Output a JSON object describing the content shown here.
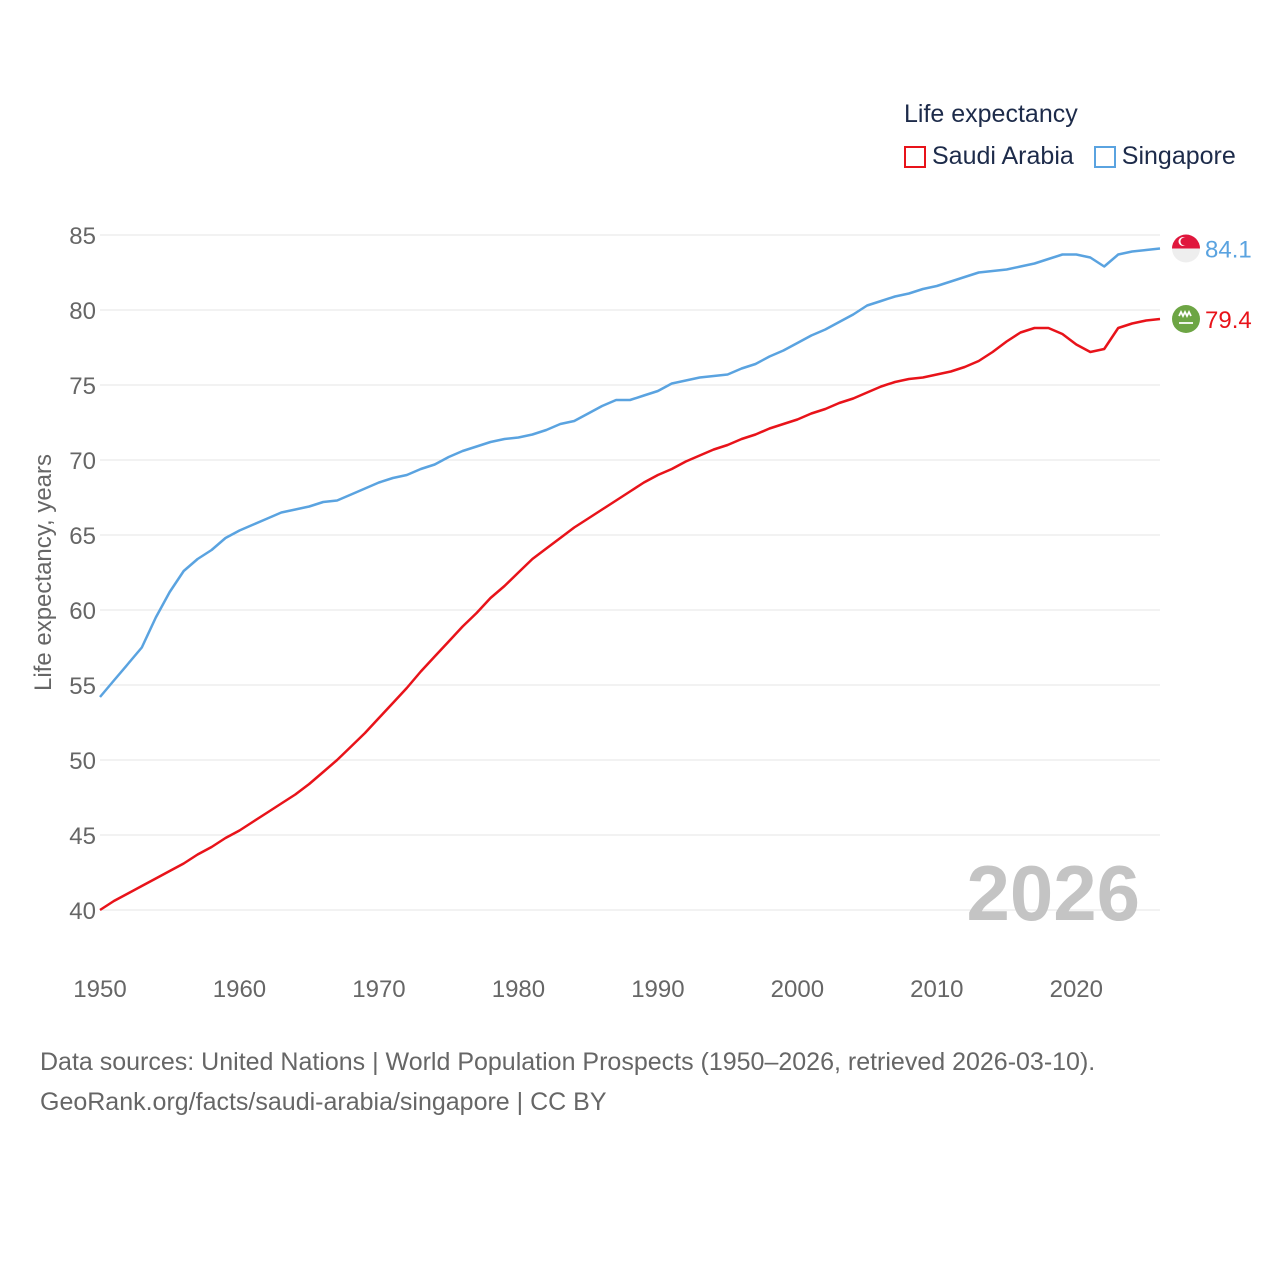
{
  "chart_data": {
    "type": "line",
    "title": "Life expectancy",
    "ylabel": "Life expectancy, years",
    "xlabel": "",
    "xlim": [
      1950,
      2026
    ],
    "ylim": [
      40,
      85
    ],
    "x_ticks": [
      1950,
      1960,
      1970,
      1980,
      1990,
      2000,
      2010,
      2020
    ],
    "y_ticks": [
      40,
      45,
      50,
      55,
      60,
      65,
      70,
      75,
      80,
      85
    ],
    "year_watermark": "2026",
    "series": [
      {
        "name": "Saudi Arabia",
        "color": "#e8131a",
        "end_label": "79.4",
        "flag": "saudi-arabia-flag-icon",
        "points": [
          [
            1950,
            40.0
          ],
          [
            1951,
            40.6
          ],
          [
            1952,
            41.1
          ],
          [
            1953,
            41.6
          ],
          [
            1954,
            42.1
          ],
          [
            1955,
            42.6
          ],
          [
            1956,
            43.1
          ],
          [
            1957,
            43.7
          ],
          [
            1958,
            44.2
          ],
          [
            1959,
            44.8
          ],
          [
            1960,
            45.3
          ],
          [
            1961,
            45.9
          ],
          [
            1962,
            46.5
          ],
          [
            1963,
            47.1
          ],
          [
            1964,
            47.7
          ],
          [
            1965,
            48.4
          ],
          [
            1966,
            49.2
          ],
          [
            1967,
            50.0
          ],
          [
            1968,
            50.9
          ],
          [
            1969,
            51.8
          ],
          [
            1970,
            52.8
          ],
          [
            1971,
            53.8
          ],
          [
            1972,
            54.8
          ],
          [
            1973,
            55.9
          ],
          [
            1974,
            56.9
          ],
          [
            1975,
            57.9
          ],
          [
            1976,
            58.9
          ],
          [
            1977,
            59.8
          ],
          [
            1978,
            60.8
          ],
          [
            1979,
            61.6
          ],
          [
            1980,
            62.5
          ],
          [
            1981,
            63.4
          ],
          [
            1982,
            64.1
          ],
          [
            1983,
            64.8
          ],
          [
            1984,
            65.5
          ],
          [
            1985,
            66.1
          ],
          [
            1986,
            66.7
          ],
          [
            1987,
            67.3
          ],
          [
            1988,
            67.9
          ],
          [
            1989,
            68.5
          ],
          [
            1990,
            69.0
          ],
          [
            1991,
            69.4
          ],
          [
            1992,
            69.9
          ],
          [
            1993,
            70.3
          ],
          [
            1994,
            70.7
          ],
          [
            1995,
            71.0
          ],
          [
            1996,
            71.4
          ],
          [
            1997,
            71.7
          ],
          [
            1998,
            72.1
          ],
          [
            1999,
            72.4
          ],
          [
            2000,
            72.7
          ],
          [
            2001,
            73.1
          ],
          [
            2002,
            73.4
          ],
          [
            2003,
            73.8
          ],
          [
            2004,
            74.1
          ],
          [
            2005,
            74.5
          ],
          [
            2006,
            74.9
          ],
          [
            2007,
            75.2
          ],
          [
            2008,
            75.4
          ],
          [
            2009,
            75.5
          ],
          [
            2010,
            75.7
          ],
          [
            2011,
            75.9
          ],
          [
            2012,
            76.2
          ],
          [
            2013,
            76.6
          ],
          [
            2014,
            77.2
          ],
          [
            2015,
            77.9
          ],
          [
            2016,
            78.5
          ],
          [
            2017,
            78.8
          ],
          [
            2018,
            78.8
          ],
          [
            2019,
            78.4
          ],
          [
            2020,
            77.7
          ],
          [
            2021,
            77.2
          ],
          [
            2022,
            77.4
          ],
          [
            2023,
            78.8
          ],
          [
            2024,
            79.1
          ],
          [
            2025,
            79.3
          ],
          [
            2026,
            79.4
          ]
        ]
      },
      {
        "name": "Singapore",
        "color": "#5aa3e0",
        "end_label": "84.1",
        "flag": "singapore-flag-icon",
        "points": [
          [
            1950,
            54.2
          ],
          [
            1951,
            55.3
          ],
          [
            1952,
            56.4
          ],
          [
            1953,
            57.5
          ],
          [
            1954,
            59.5
          ],
          [
            1955,
            61.2
          ],
          [
            1956,
            62.6
          ],
          [
            1957,
            63.4
          ],
          [
            1958,
            64.0
          ],
          [
            1959,
            64.8
          ],
          [
            1960,
            65.3
          ],
          [
            1961,
            65.7
          ],
          [
            1962,
            66.1
          ],
          [
            1963,
            66.5
          ],
          [
            1964,
            66.7
          ],
          [
            1965,
            66.9
          ],
          [
            1966,
            67.2
          ],
          [
            1967,
            67.3
          ],
          [
            1968,
            67.7
          ],
          [
            1969,
            68.1
          ],
          [
            1970,
            68.5
          ],
          [
            1971,
            68.8
          ],
          [
            1972,
            69.0
          ],
          [
            1973,
            69.4
          ],
          [
            1974,
            69.7
          ],
          [
            1975,
            70.2
          ],
          [
            1976,
            70.6
          ],
          [
            1977,
            70.9
          ],
          [
            1978,
            71.2
          ],
          [
            1979,
            71.4
          ],
          [
            1980,
            71.5
          ],
          [
            1981,
            71.7
          ],
          [
            1982,
            72.0
          ],
          [
            1983,
            72.4
          ],
          [
            1984,
            72.6
          ],
          [
            1985,
            73.1
          ],
          [
            1986,
            73.6
          ],
          [
            1987,
            74.0
          ],
          [
            1988,
            74.0
          ],
          [
            1989,
            74.3
          ],
          [
            1990,
            74.6
          ],
          [
            1991,
            75.1
          ],
          [
            1992,
            75.3
          ],
          [
            1993,
            75.5
          ],
          [
            1994,
            75.6
          ],
          [
            1995,
            75.7
          ],
          [
            1996,
            76.1
          ],
          [
            1997,
            76.4
          ],
          [
            1998,
            76.9
          ],
          [
            1999,
            77.3
          ],
          [
            2000,
            77.8
          ],
          [
            2001,
            78.3
          ],
          [
            2002,
            78.7
          ],
          [
            2003,
            79.2
          ],
          [
            2004,
            79.7
          ],
          [
            2005,
            80.3
          ],
          [
            2006,
            80.6
          ],
          [
            2007,
            80.9
          ],
          [
            2008,
            81.1
          ],
          [
            2009,
            81.4
          ],
          [
            2010,
            81.6
          ],
          [
            2011,
            81.9
          ],
          [
            2012,
            82.2
          ],
          [
            2013,
            82.5
          ],
          [
            2014,
            82.6
          ],
          [
            2015,
            82.7
          ],
          [
            2016,
            82.9
          ],
          [
            2017,
            83.1
          ],
          [
            2018,
            83.4
          ],
          [
            2019,
            83.7
          ],
          [
            2020,
            83.7
          ],
          [
            2021,
            83.5
          ],
          [
            2022,
            82.9
          ],
          [
            2023,
            83.7
          ],
          [
            2024,
            83.9
          ],
          [
            2025,
            84.0
          ],
          [
            2026,
            84.1
          ]
        ]
      }
    ]
  },
  "footer": {
    "line1": "Data sources: United Nations | World Population Prospects (1950–2026, retrieved 2026-03-10).",
    "line2": "GeoRank.org/facts/saudi-arabia/singapore | CC BY"
  }
}
